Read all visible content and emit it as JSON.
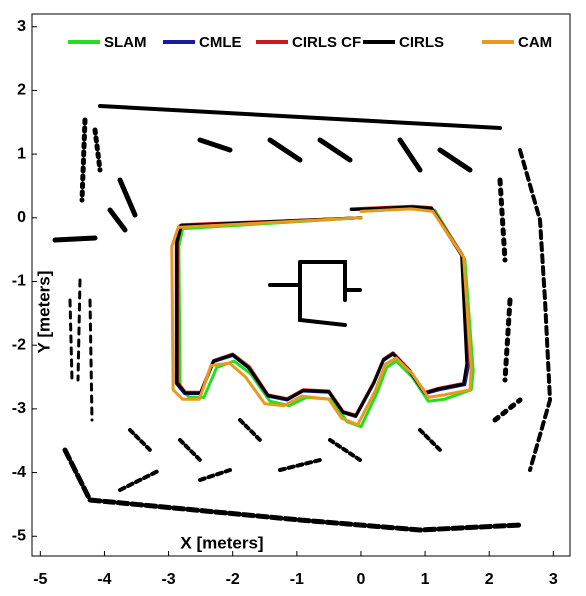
{
  "chart_data": {
    "type": "line",
    "x_label": "X [meters]",
    "y_label": "Y [meters]",
    "xlim": [
      -5.13,
      3.26
    ],
    "ylim": [
      -5.31,
      3.2
    ],
    "xticks": [
      -5,
      -4,
      -3,
      -2,
      -1,
      0,
      1,
      2,
      3
    ],
    "yticks": [
      -5,
      -4,
      -3,
      -2,
      -1,
      0,
      1,
      2,
      3
    ],
    "legend": "top",
    "series": [
      {
        "name": "SLAM",
        "color": "#22e01e",
        "x": [
          0.0,
          -2.78,
          -2.84,
          -2.82,
          -2.68,
          -2.45,
          -2.25,
          -1.98,
          -1.72,
          -1.42,
          -1.12,
          -0.85,
          -0.45,
          -0.22,
          0.0,
          0.25,
          0.4,
          0.55,
          0.8,
          1.05,
          1.3,
          1.72,
          1.75,
          1.62,
          1.15,
          0.8,
          0.0
        ],
        "values": [
          0.0,
          -0.17,
          -0.45,
          -2.65,
          -2.82,
          -2.82,
          -2.35,
          -2.25,
          -2.45,
          -2.88,
          -2.95,
          -2.82,
          -2.85,
          -3.2,
          -3.28,
          -2.75,
          -2.35,
          -2.25,
          -2.5,
          -2.88,
          -2.85,
          -2.7,
          -2.4,
          -0.65,
          0.12,
          0.15,
          0.1
        ]
      },
      {
        "name": "CMLE",
        "color": "#1a1a9e",
        "x": [
          0.0,
          -2.82,
          -2.88,
          -2.88,
          -2.75,
          -2.5,
          -2.3,
          -2.0,
          -1.75,
          -1.45,
          -1.15,
          -0.9,
          -0.5,
          -0.28,
          -0.08,
          0.2,
          0.35,
          0.5,
          0.75,
          1.0,
          1.22,
          1.62,
          1.68,
          1.58,
          1.1,
          0.8,
          -0.15
        ],
        "values": [
          0.0,
          -0.12,
          -0.4,
          -2.6,
          -2.76,
          -2.76,
          -2.26,
          -2.16,
          -2.36,
          -2.8,
          -2.86,
          -2.72,
          -2.74,
          -3.06,
          -3.12,
          -2.6,
          -2.24,
          -2.14,
          -2.4,
          -2.76,
          -2.7,
          -2.62,
          -2.3,
          -0.6,
          0.15,
          0.17,
          0.13
        ]
      },
      {
        "name": "CIRLS CF",
        "color": "#d01818",
        "x": [
          0.0,
          -2.8,
          -2.86,
          -2.86,
          -2.74,
          -2.5,
          -2.3,
          -2.0,
          -1.74,
          -1.45,
          -1.15,
          -0.9,
          -0.5,
          -0.28,
          -0.08,
          0.2,
          0.35,
          0.5,
          0.75,
          1.0,
          1.2,
          1.6,
          1.66,
          1.58,
          1.1,
          0.8,
          -0.15
        ],
        "values": [
          0.0,
          -0.11,
          -0.38,
          -2.58,
          -2.74,
          -2.74,
          -2.24,
          -2.14,
          -2.34,
          -2.78,
          -2.84,
          -2.7,
          -2.72,
          -3.04,
          -3.1,
          -2.58,
          -2.22,
          -2.12,
          -2.38,
          -2.74,
          -2.68,
          -2.6,
          -2.28,
          -0.58,
          0.16,
          0.18,
          0.14
        ]
      },
      {
        "name": "CIRLS",
        "color": "#000000",
        "x": [
          0.0,
          -2.8,
          -2.87,
          -2.87,
          -2.74,
          -2.5,
          -2.3,
          -2.0,
          -1.75,
          -1.45,
          -1.15,
          -0.9,
          -0.5,
          -0.28,
          -0.08,
          0.2,
          0.35,
          0.5,
          0.75,
          1.0,
          1.2,
          1.6,
          1.65,
          1.57,
          1.1,
          0.8,
          -0.15
        ],
        "values": [
          0.0,
          -0.12,
          -0.39,
          -2.59,
          -2.75,
          -2.75,
          -2.25,
          -2.15,
          -2.35,
          -2.79,
          -2.85,
          -2.71,
          -2.73,
          -3.05,
          -3.11,
          -2.59,
          -2.23,
          -2.13,
          -2.39,
          -2.75,
          -2.69,
          -2.61,
          -2.29,
          -0.59,
          0.15,
          0.17,
          0.13
        ]
      },
      {
        "name": "CAM",
        "color": "#e89a1e",
        "x": [
          0.0,
          -2.85,
          -2.95,
          -2.93,
          -2.78,
          -2.52,
          -2.34,
          -2.05,
          -1.8,
          -1.5,
          -1.2,
          -0.92,
          -0.5,
          -0.3,
          -0.05,
          0.22,
          0.38,
          0.55,
          0.8,
          1.05,
          1.3,
          1.7,
          1.72,
          1.6,
          1.12,
          0.78,
          0.0
        ],
        "values": [
          0.0,
          -0.15,
          -0.45,
          -2.7,
          -2.85,
          -2.85,
          -2.32,
          -2.28,
          -2.5,
          -2.92,
          -2.95,
          -2.8,
          -2.85,
          -3.15,
          -3.25,
          -2.72,
          -2.3,
          -2.2,
          -2.45,
          -2.82,
          -2.78,
          -2.7,
          -2.35,
          -0.62,
          0.1,
          0.14,
          0.1
        ]
      }
    ]
  }
}
